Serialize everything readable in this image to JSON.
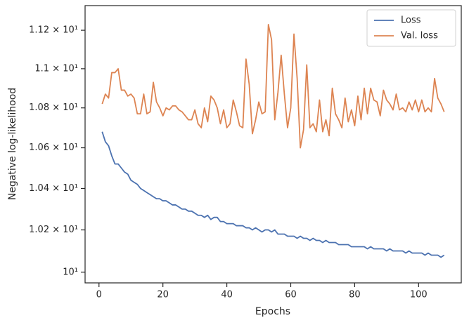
{
  "chart_data": {
    "type": "line",
    "xlabel": "Epochs",
    "ylabel": "Negative log-likelihood",
    "x": [
      1,
      2,
      3,
      4,
      5,
      6,
      7,
      8,
      9,
      10,
      11,
      12,
      13,
      14,
      15,
      16,
      17,
      18,
      19,
      20,
      21,
      22,
      23,
      24,
      25,
      26,
      27,
      28,
      29,
      30,
      31,
      32,
      33,
      34,
      35,
      36,
      37,
      38,
      39,
      40,
      41,
      42,
      43,
      44,
      45,
      46,
      47,
      48,
      49,
      50,
      51,
      52,
      53,
      54,
      55,
      56,
      57,
      58,
      59,
      60,
      61,
      62,
      63,
      64,
      65,
      66,
      67,
      68,
      69,
      70,
      71,
      72,
      73,
      74,
      75,
      76,
      77,
      78,
      79,
      80,
      81,
      82,
      83,
      84,
      85,
      86,
      87,
      88,
      89,
      90,
      91,
      92,
      93,
      94,
      95,
      96,
      97,
      98,
      99,
      100,
      101,
      102,
      103,
      104,
      105,
      106,
      107,
      108
    ],
    "series": [
      {
        "name": "Loss",
        "color": "#4c72b0",
        "values": [
          10.68,
          10.63,
          10.61,
          10.56,
          10.52,
          10.52,
          10.5,
          10.48,
          10.47,
          10.44,
          10.43,
          10.42,
          10.4,
          10.39,
          10.38,
          10.37,
          10.36,
          10.35,
          10.35,
          10.34,
          10.34,
          10.33,
          10.32,
          10.32,
          10.31,
          10.3,
          10.3,
          10.29,
          10.29,
          10.28,
          10.27,
          10.27,
          10.26,
          10.27,
          10.25,
          10.26,
          10.26,
          10.24,
          10.24,
          10.23,
          10.23,
          10.23,
          10.22,
          10.22,
          10.22,
          10.21,
          10.21,
          10.2,
          10.21,
          10.2,
          10.19,
          10.2,
          10.2,
          10.19,
          10.2,
          10.18,
          10.18,
          10.18,
          10.17,
          10.17,
          10.17,
          10.16,
          10.17,
          10.16,
          10.16,
          10.15,
          10.16,
          10.15,
          10.15,
          10.14,
          10.15,
          10.14,
          10.14,
          10.14,
          10.13,
          10.13,
          10.13,
          10.13,
          10.12,
          10.12,
          10.12,
          10.12,
          10.12,
          10.11,
          10.12,
          10.11,
          10.11,
          10.11,
          10.11,
          10.1,
          10.11,
          10.1,
          10.1,
          10.1,
          10.1,
          10.09,
          10.1,
          10.09,
          10.09,
          10.09,
          10.09,
          10.08,
          10.09,
          10.08,
          10.08,
          10.08,
          10.07,
          10.08
        ]
      },
      {
        "name": "Val. loss",
        "color": "#dd8452",
        "values": [
          10.82,
          10.87,
          10.85,
          10.98,
          10.98,
          11.0,
          10.89,
          10.89,
          10.86,
          10.87,
          10.85,
          10.77,
          10.77,
          10.87,
          10.77,
          10.78,
          10.93,
          10.83,
          10.8,
          10.76,
          10.8,
          10.79,
          10.81,
          10.81,
          10.79,
          10.78,
          10.76,
          10.74,
          10.74,
          10.79,
          10.72,
          10.7,
          10.8,
          10.73,
          10.86,
          10.84,
          10.8,
          10.72,
          10.79,
          10.7,
          10.72,
          10.84,
          10.78,
          10.71,
          10.7,
          11.05,
          10.92,
          10.67,
          10.74,
          10.83,
          10.77,
          10.78,
          11.23,
          11.15,
          10.74,
          10.88,
          11.07,
          10.87,
          10.7,
          10.8,
          11.18,
          10.95,
          10.6,
          10.69,
          11.02,
          10.7,
          10.72,
          10.68,
          10.84,
          10.68,
          10.74,
          10.66,
          10.9,
          10.77,
          10.74,
          10.7,
          10.85,
          10.73,
          10.79,
          10.71,
          10.86,
          10.74,
          10.9,
          10.77,
          10.9,
          10.84,
          10.83,
          10.76,
          10.89,
          10.84,
          10.82,
          10.79,
          10.87,
          10.79,
          10.8,
          10.78,
          10.83,
          10.79,
          10.84,
          10.78,
          10.84,
          10.78,
          10.8,
          10.78,
          10.95,
          10.85,
          10.82,
          10.78
        ]
      }
    ],
    "xlim": [
      -4.35,
      113.35
    ],
    "xticks": [
      0,
      20,
      40,
      60,
      80,
      100
    ],
    "ylim": [
      9.95,
      11.33
    ],
    "log_y": true,
    "yticks": [
      {
        "value": 10,
        "label": "10¹"
      },
      {
        "value": 10.2,
        "label": "1.02 × 10¹"
      },
      {
        "value": 10.4,
        "label": "1.04 × 10¹"
      },
      {
        "value": 10.6,
        "label": "1.06 × 10¹"
      },
      {
        "value": 10.8,
        "label": "1.08 × 10¹"
      },
      {
        "value": 11,
        "label": "1.1 × 10¹"
      },
      {
        "value": 11.2,
        "label": "1.12 × 10¹"
      }
    ],
    "legend": "upper right",
    "grid": false
  }
}
